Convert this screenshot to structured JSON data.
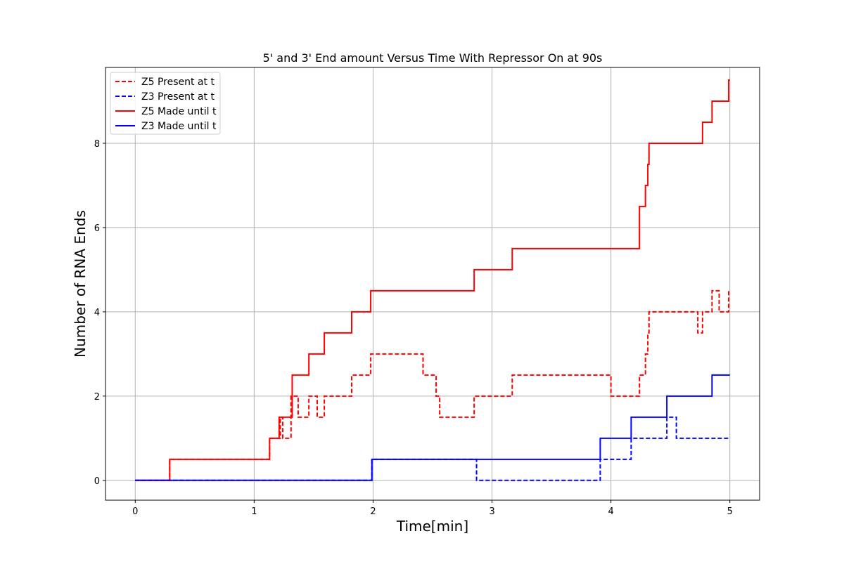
{
  "chart_data": {
    "type": "line",
    "title": "5' and 3' End amount Versus Time With Repressor On at 90s",
    "xlabel": "Time[min]",
    "ylabel": "Number of RNA Ends",
    "xlim": [
      -0.25,
      5.25
    ],
    "ylim": [
      -0.47,
      9.8
    ],
    "xticks": [
      0,
      1,
      2,
      3,
      4,
      5
    ],
    "xtick_labels": [
      "0",
      "1",
      "2",
      "3",
      "4",
      "5"
    ],
    "yticks": [
      0,
      2,
      4,
      6,
      8
    ],
    "ytick_labels": [
      "0",
      "2",
      "4",
      "6",
      "8"
    ],
    "grid": true,
    "legend_position": "top-left",
    "step": "post",
    "series": [
      {
        "name": "Z5 Present at t",
        "color": "#ff0000",
        "dash": "dashed",
        "x": [
          0,
          0.29,
          1.13,
          1.22,
          1.24,
          1.31,
          1.33,
          1.37,
          1.46,
          1.53,
          1.59,
          1.82,
          1.98,
          2.42,
          2.53,
          2.56,
          2.85,
          3.17,
          4.0,
          4.24,
          4.29,
          4.31,
          4.32,
          4.73,
          4.77,
          4.85,
          4.91,
          4.99,
          5.0
        ],
        "y": [
          0,
          0.5,
          1.0,
          1.5,
          1.0,
          2.0,
          2.0,
          1.5,
          2.0,
          1.5,
          2.0,
          2.5,
          3.0,
          2.5,
          2.0,
          1.5,
          2.0,
          2.5,
          2.0,
          2.5,
          3.0,
          3.5,
          4.0,
          3.5,
          4.0,
          4.5,
          4.0,
          4.5,
          4.5
        ]
      },
      {
        "name": "Z3 Present at t",
        "color": "#0000ff",
        "dash": "dashed",
        "x": [
          0,
          1.99,
          2.87,
          3.91,
          4.17,
          4.47,
          4.55,
          5.0
        ],
        "y": [
          0,
          0.5,
          0.0,
          0.5,
          1.0,
          1.5,
          1.0,
          1.0
        ]
      },
      {
        "name": "Z5 Made until t",
        "color": "#ff0000",
        "dash": "solid",
        "x": [
          0,
          0.29,
          1.13,
          1.21,
          1.32,
          1.46,
          1.59,
          1.82,
          1.98,
          2.85,
          3.17,
          4.24,
          4.29,
          4.31,
          4.32,
          4.77,
          4.85,
          4.99,
          5.0
        ],
        "y": [
          0,
          0.5,
          1.0,
          1.5,
          2.5,
          3.0,
          3.5,
          4.0,
          4.5,
          5.0,
          5.5,
          6.5,
          7.0,
          7.5,
          8.0,
          8.5,
          9.0,
          9.5,
          9.5
        ]
      },
      {
        "name": "Z3 Made until t",
        "color": "#0000ff",
        "dash": "solid",
        "x": [
          0,
          1.99,
          3.91,
          4.17,
          4.47,
          4.85,
          5.0
        ],
        "y": [
          0,
          0.5,
          1.0,
          1.5,
          2.0,
          2.5,
          2.5
        ]
      }
    ]
  }
}
